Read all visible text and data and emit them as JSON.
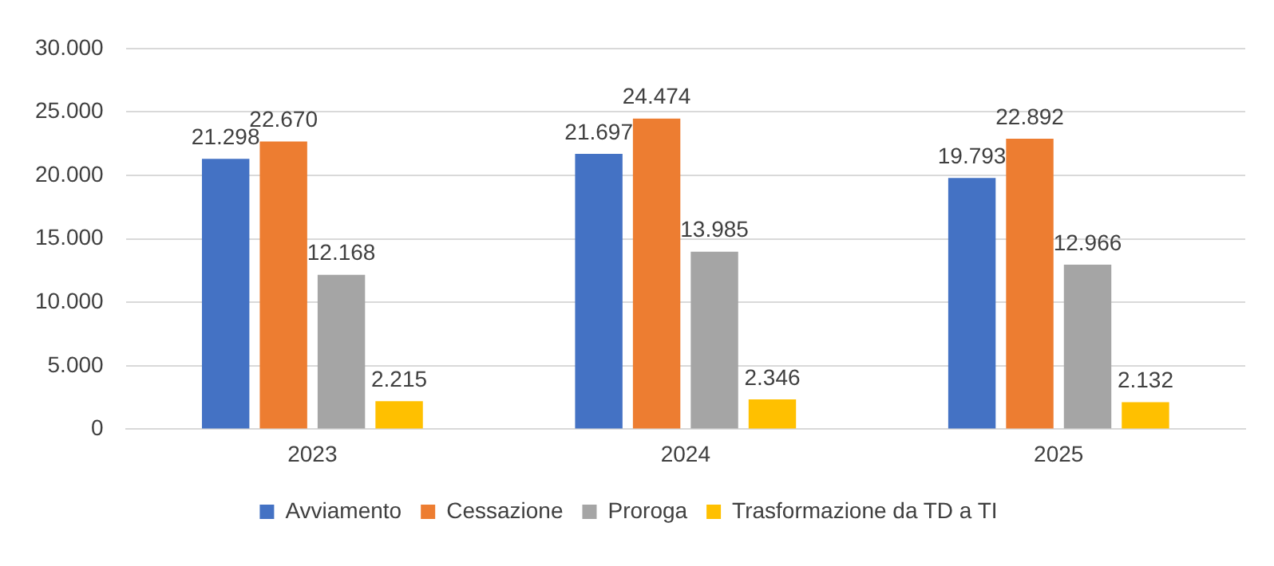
{
  "chart_data": {
    "type": "bar",
    "categories": [
      "2023",
      "2024",
      "2025"
    ],
    "series": [
      {
        "name": "Avviamento",
        "color": "#4472c4",
        "values": [
          21298,
          21697,
          19793
        ],
        "value_labels": [
          "21.298",
          "21.697",
          "19.793"
        ]
      },
      {
        "name": "Cessazione",
        "color": "#ed7d31",
        "values": [
          22670,
          24474,
          22892
        ],
        "value_labels": [
          "22.670",
          "24.474",
          "22.892"
        ]
      },
      {
        "name": "Proroga",
        "color": "#a5a5a5",
        "values": [
          12168,
          13985,
          12966
        ],
        "value_labels": [
          "12.168",
          "13.985",
          "12.966"
        ]
      },
      {
        "name": "Trasformazione da TD a TI",
        "color": "#ffc000",
        "values": [
          2215,
          2346,
          2132
        ],
        "value_labels": [
          "2.215",
          "2.346",
          "2.132"
        ]
      }
    ],
    "ylim": [
      0,
      30000
    ],
    "yticks": [
      {
        "value": 0,
        "label": "0"
      },
      {
        "value": 5000,
        "label": "5.000"
      },
      {
        "value": 10000,
        "label": "10.000"
      },
      {
        "value": 15000,
        "label": "15.000"
      },
      {
        "value": 20000,
        "label": "20.000"
      },
      {
        "value": 25000,
        "label": "25.000"
      },
      {
        "value": 30000,
        "label": "30.000"
      }
    ],
    "grid": "y",
    "legend": "bottom"
  }
}
